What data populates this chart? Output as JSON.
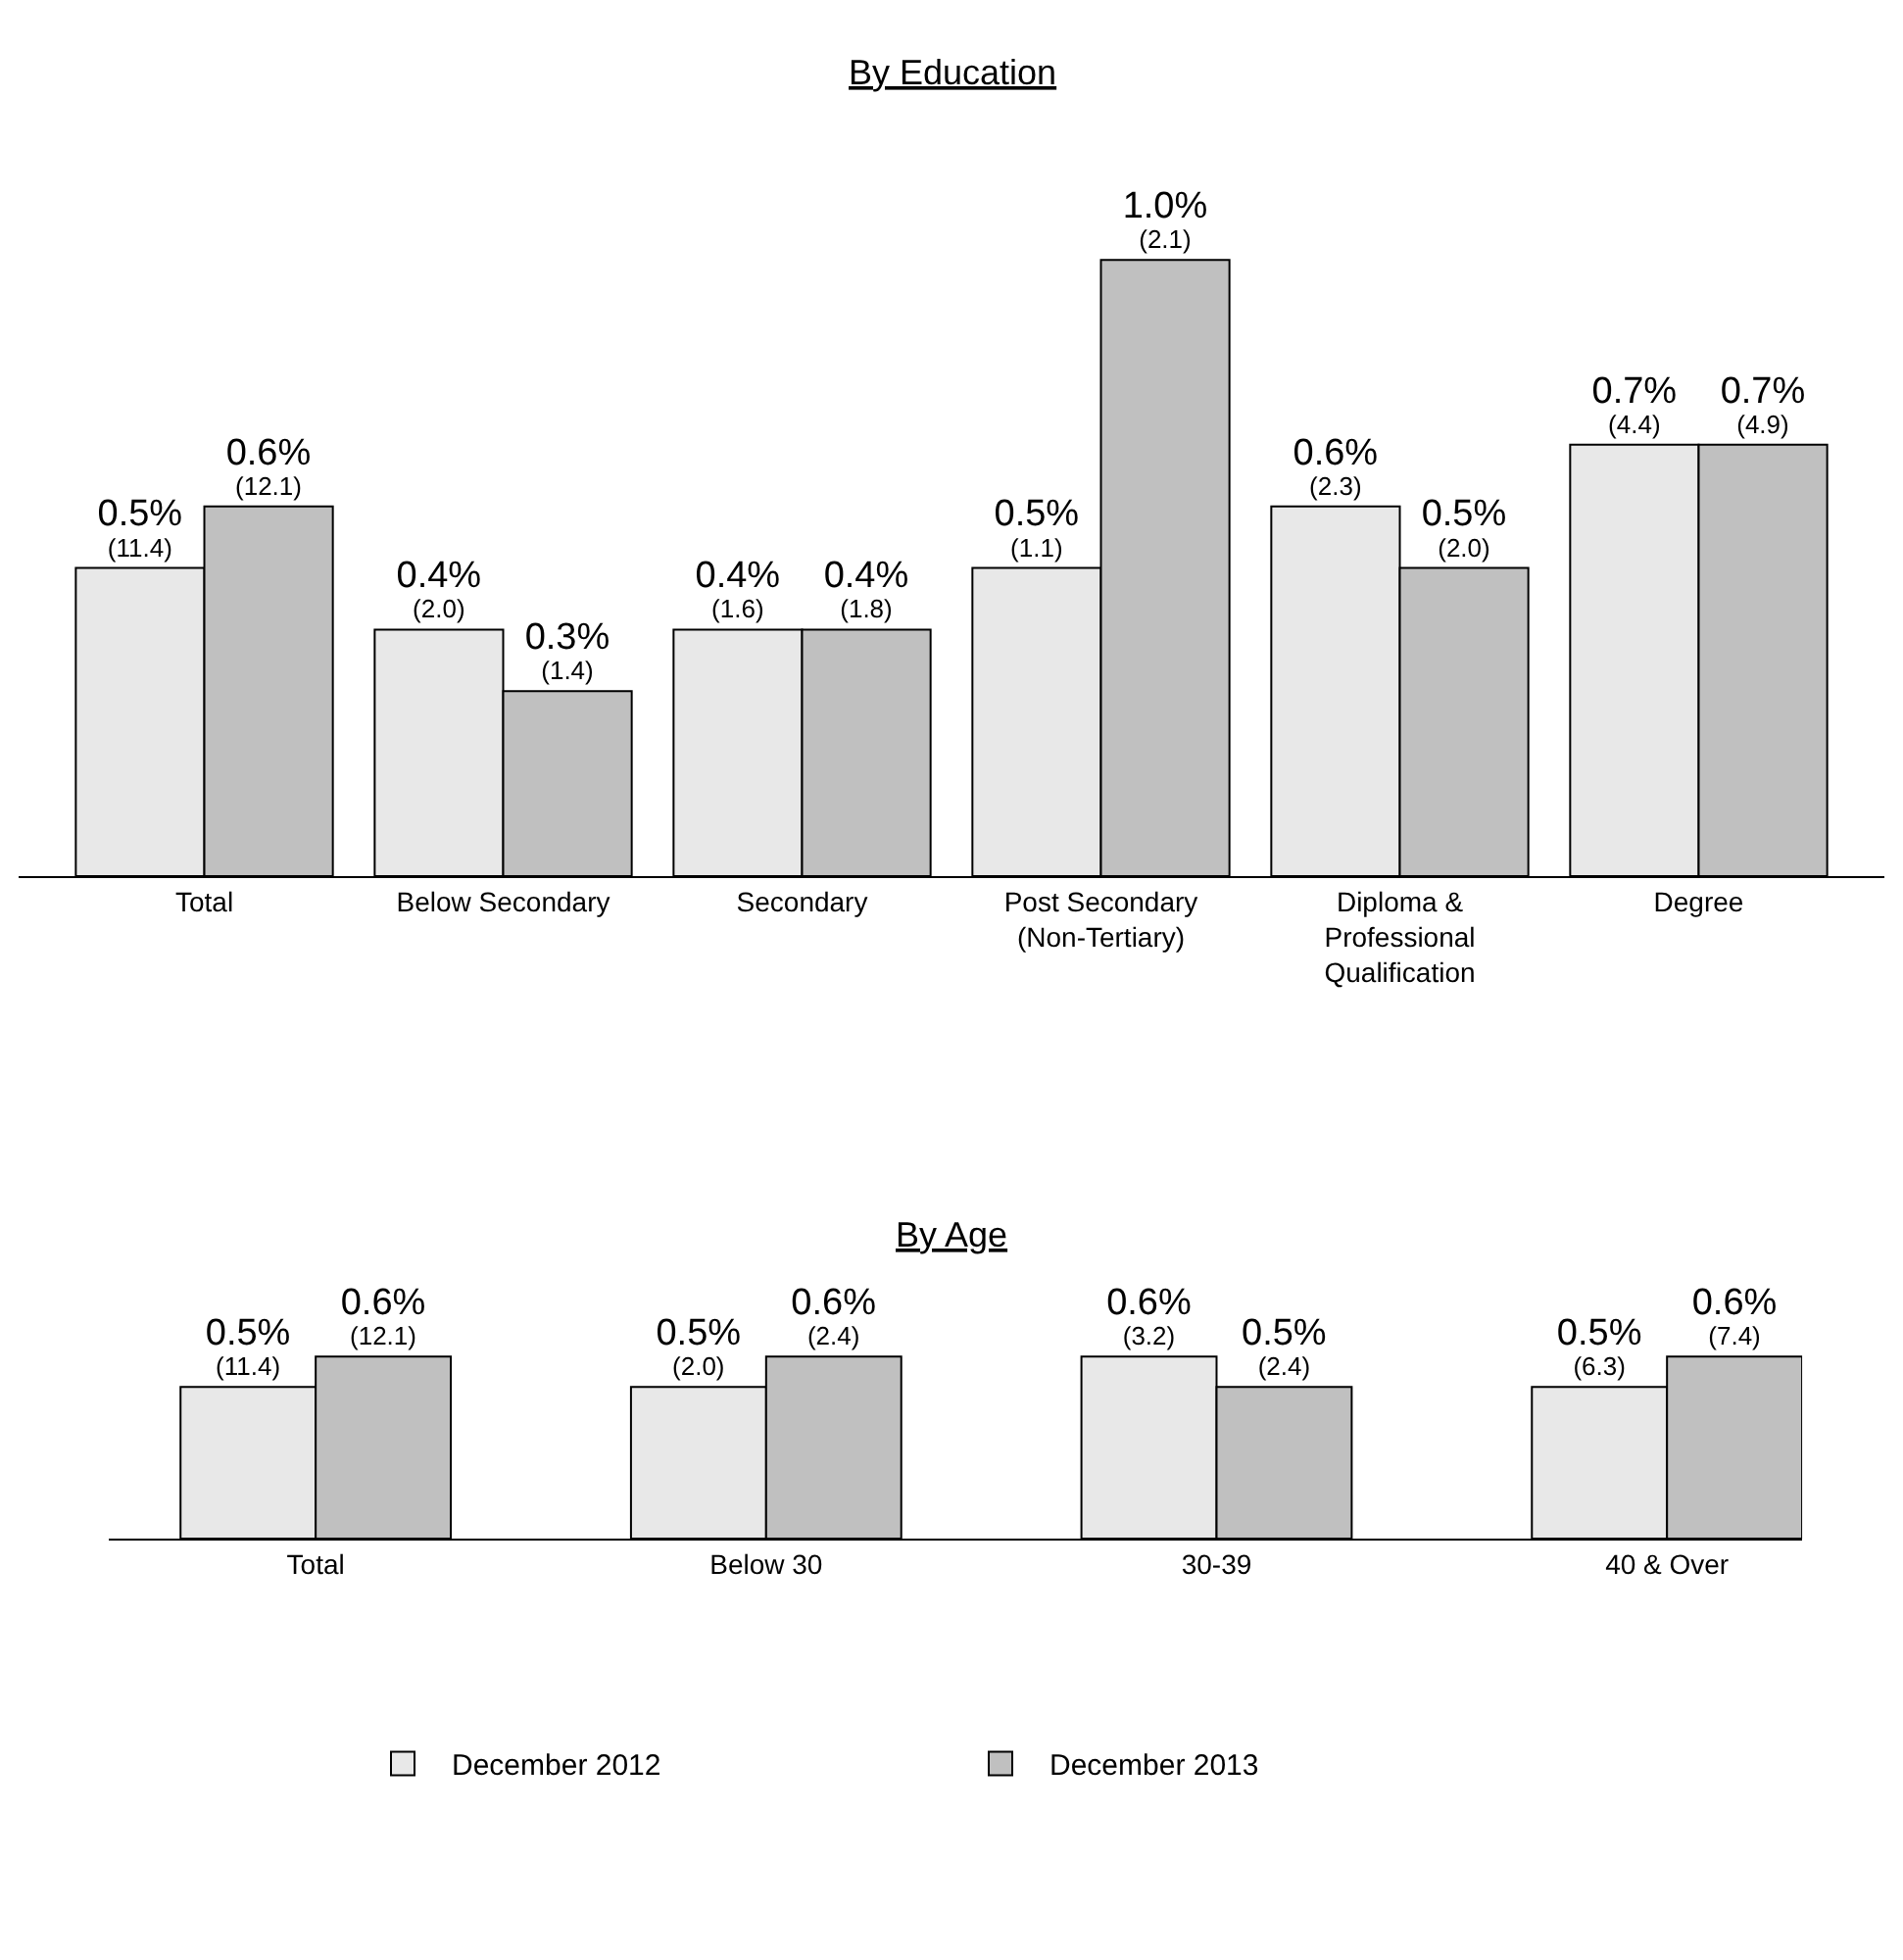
{
  "chart_data": [
    {
      "type": "bar",
      "title": "By Education",
      "categories": [
        "Total",
        "Below Secondary",
        "Secondary",
        "Post Secondary\n(Non-Tertiary)",
        "Diploma &\nProfessional\nQualification",
        "Degree"
      ],
      "series": [
        {
          "color": "#e8e8e8",
          "values": [
            0.5,
            0.4,
            0.4,
            0.5,
            0.6,
            0.7
          ],
          "value_labels": [
            "0.5%\n(11.4)",
            "0.4%\n(2.0)",
            "0.4%\n(1.6)",
            "0.5%\n(1.1)",
            "0.6%\n(2.3)",
            "0.7%\n(4.4)"
          ]
        },
        {
          "color": "#c0c0c0",
          "values": [
            0.6,
            0.3,
            0.4,
            1.0,
            0.5,
            0.7
          ],
          "value_labels": [
            "0.6%\n(12.1)",
            "0.3%\n(1.4)",
            "0.4%\n(1.8)",
            "1.0%\n(2.1)",
            "0.5%\n(2.0)",
            "0.7%\n(4.9)"
          ]
        }
      ]
    },
    {
      "type": "bar",
      "title": "By Age",
      "categories": [
        "Total",
        "Below 30",
        "30-39",
        "40 & Over"
      ],
      "series": [
        {
          "name": "December 2012",
          "color": "#e8e8e8",
          "values": [
            0.5,
            0.5,
            0.6,
            0.5
          ],
          "value_labels": [
            "0.5%\n(11.4)",
            "0.5%\n(2.0)",
            "0.6%\n(3.2)",
            "0.5%\n(6.3)"
          ]
        },
        {
          "name": "December 2013",
          "color": "#c0c0c0",
          "values": [
            0.6,
            0.6,
            0.5,
            0.6
          ],
          "value_labels": [
            "0.6%\n(12.1)",
            "0.6%\n(2.4)",
            "0.5%\n(2.4)",
            "0.6%\n(7.4)"
          ]
        }
      ],
      "legend": "bottom"
    }
  ]
}
